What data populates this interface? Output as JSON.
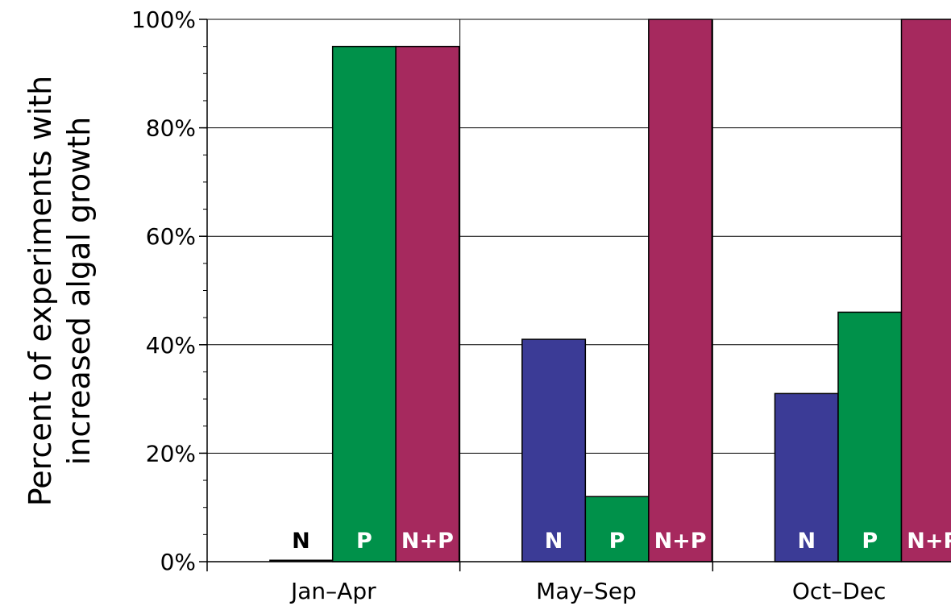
{
  "chart_data": {
    "type": "bar",
    "categories": [
      "Jan–Apr",
      "May–Sep",
      "Oct–Dec"
    ],
    "series": [
      {
        "name": "N",
        "color": "#3b3b96",
        "values": [
          0,
          41,
          31
        ]
      },
      {
        "name": "P",
        "color": "#00914a",
        "values": [
          95,
          12,
          46
        ]
      },
      {
        "name": "N+P",
        "color": "#a6295e",
        "values": [
          95,
          100,
          100
        ]
      }
    ],
    "bar_labels": [
      "N",
      "P",
      "N+P"
    ],
    "ylabel_lines": [
      "Percent  of  experiments with",
      "increased algal growth"
    ],
    "ylim": [
      0,
      100
    ],
    "yticks": [
      "0%",
      "20%",
      "40%",
      "60%",
      "80%",
      "100%"
    ],
    "grid": true,
    "bar_label_colors": {
      "on_bar": "#ffffff",
      "empty_bar": "#000000"
    }
  }
}
